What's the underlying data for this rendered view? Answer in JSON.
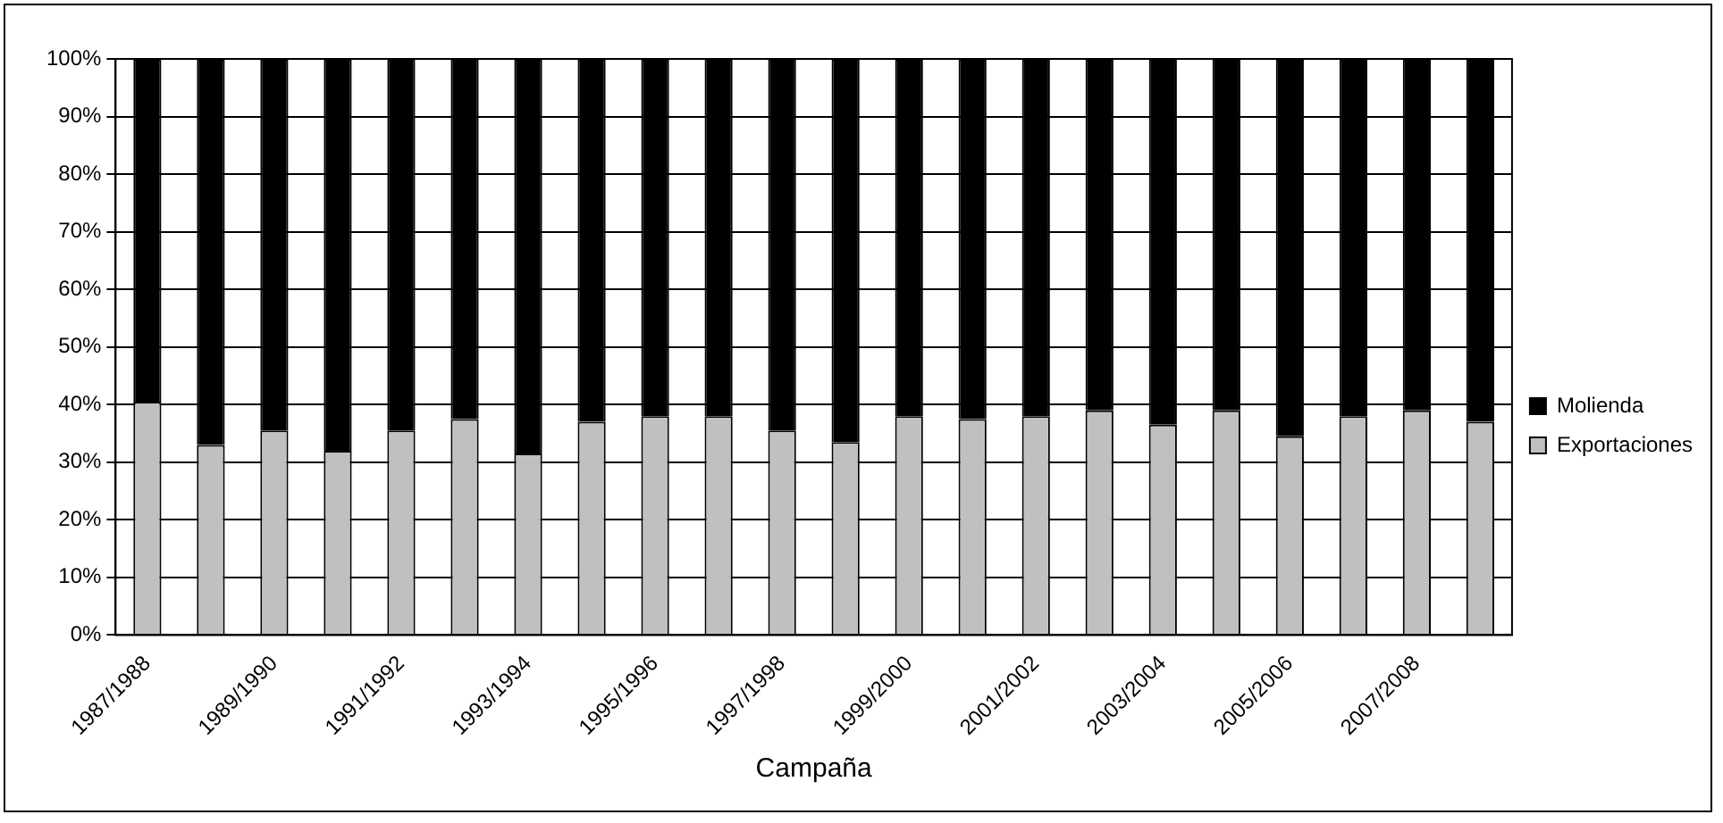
{
  "chart_data": {
    "type": "bar",
    "stacked": true,
    "xlabel": "Campaña",
    "categories": [
      "1987/1988",
      null,
      "1989/1990",
      null,
      "1991/1992",
      null,
      "1993/1994",
      null,
      "1995/1996",
      null,
      "1997/1998",
      null,
      "1999/2000",
      null,
      "2001/2002",
      null,
      "2003/2004",
      null,
      "2005/2006",
      null,
      "2007/2008",
      null
    ],
    "series": [
      {
        "name": "Exportaciones",
        "color": "#c0c0c0",
        "values": [
          40.5,
          33,
          35.5,
          32,
          35.5,
          37.5,
          31.5,
          37,
          38,
          38,
          35.5,
          33.5,
          38,
          37.5,
          38,
          39,
          36.5,
          39,
          34.5,
          38,
          39,
          37
        ]
      },
      {
        "name": "Molienda",
        "color": "#000000",
        "values": [
          59.5,
          67,
          64.5,
          68,
          64.5,
          62.5,
          68.5,
          63,
          62,
          62,
          64.5,
          66.5,
          62,
          62.5,
          62,
          61,
          63.5,
          61,
          65.5,
          62,
          61,
          63
        ]
      }
    ],
    "ylim": [
      0,
      100
    ],
    "yticks": [
      {
        "value": 0,
        "label": "0%"
      },
      {
        "value": 10,
        "label": "10%"
      },
      {
        "value": 20,
        "label": "20%"
      },
      {
        "value": 30,
        "label": "30%"
      },
      {
        "value": 40,
        "label": "40%"
      },
      {
        "value": 50,
        "label": "50%"
      },
      {
        "value": 60,
        "label": "60%"
      },
      {
        "value": 70,
        "label": "70%"
      },
      {
        "value": 80,
        "label": "80%"
      },
      {
        "value": 90,
        "label": "90%"
      },
      {
        "value": 100,
        "label": "100%"
      }
    ],
    "grid": "y",
    "legend": "right"
  }
}
